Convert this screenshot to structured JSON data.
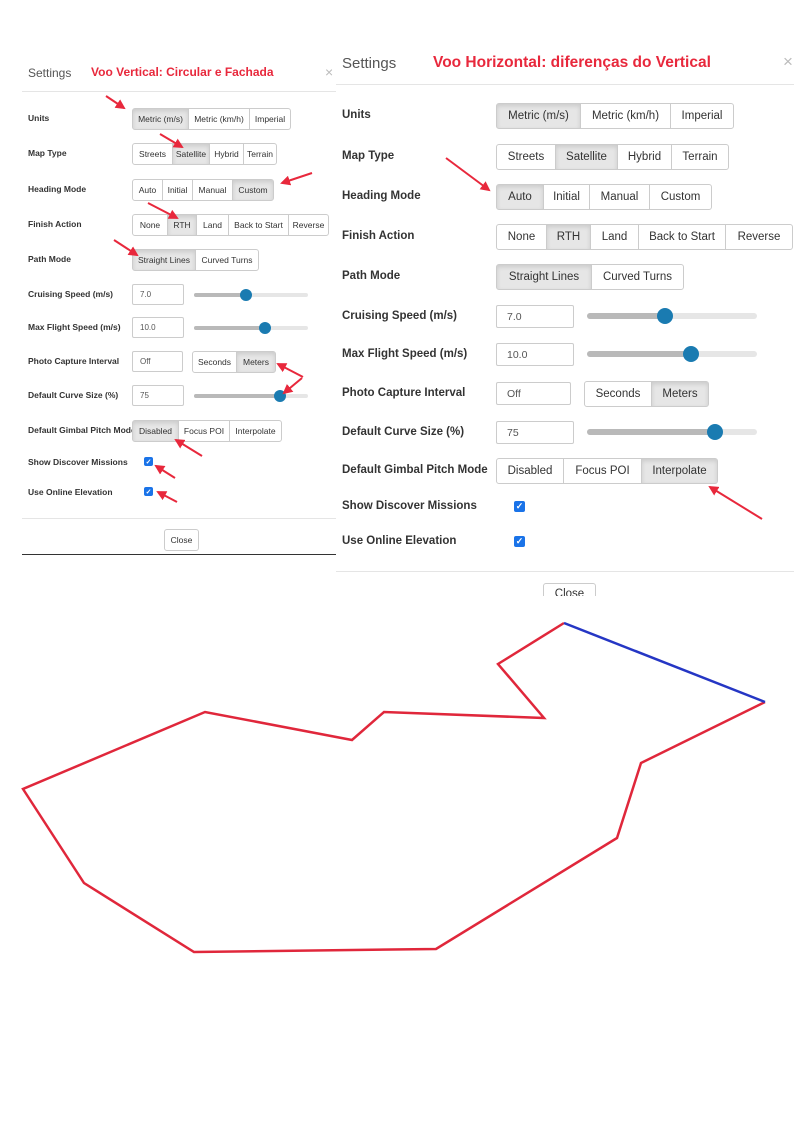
{
  "left": {
    "title": "Settings",
    "note": "Voo Vertical: Circular e Fachada",
    "close_x": "×",
    "labels": {
      "units": "Units",
      "map_type": "Map Type",
      "heading_mode": "Heading Mode",
      "finish_action": "Finish Action",
      "path_mode": "Path Mode",
      "cruising_speed": "Cruising Speed (m/s)",
      "max_speed": "Max Flight Speed (m/s)",
      "photo_interval": "Photo Capture Interval",
      "curve_size": "Default Curve Size (%)",
      "gimbal": "Default Gimbal Pitch Mode",
      "show_discover": "Show Discover Missions",
      "online_elev": "Use Online Elevation"
    },
    "units": [
      "Metric (m/s)",
      "Metric (km/h)",
      "Imperial"
    ],
    "map_type": [
      "Streets",
      "Satellite",
      "Hybrid",
      "Terrain"
    ],
    "heading_mode": [
      "Auto",
      "Initial",
      "Manual",
      "Custom"
    ],
    "finish_action": [
      "None",
      "RTH",
      "Land",
      "Back to Start",
      "Reverse"
    ],
    "path_mode": [
      "Straight Lines",
      "Curved Turns"
    ],
    "photo_mode": [
      "Seconds",
      "Meters"
    ],
    "gimbal": [
      "Disabled",
      "Focus POI",
      "Interpolate"
    ],
    "cruising_speed": "7.0",
    "max_speed": "10.0",
    "photo_interval": "Off",
    "curve_size": "75",
    "slider_levels": {
      "cruising": 0.46,
      "max": 0.62,
      "curve": 0.75
    },
    "selected": {
      "units": 0,
      "map_type": 1,
      "heading_mode": 3,
      "finish_action": 1,
      "path_mode": 0,
      "photo_mode": 1,
      "gimbal": 0
    },
    "close_button": "Close"
  },
  "right": {
    "title": "Settings",
    "note": "Voo Horizontal: diferenças do Vertical",
    "close_x": "×",
    "labels": {
      "units": "Units",
      "map_type": "Map Type",
      "heading_mode": "Heading Mode",
      "finish_action": "Finish Action",
      "path_mode": "Path Mode",
      "cruising_speed": "Cruising Speed (m/s)",
      "max_speed": "Max Flight Speed (m/s)",
      "photo_interval": "Photo Capture Interval",
      "curve_size": "Default Curve Size (%)",
      "gimbal": "Default Gimbal Pitch Mode",
      "show_discover": "Show Discover Missions",
      "online_elev": "Use Online Elevation"
    },
    "units": [
      "Metric (m/s)",
      "Metric (km/h)",
      "Imperial"
    ],
    "map_type": [
      "Streets",
      "Satellite",
      "Hybrid",
      "Terrain"
    ],
    "heading_mode": [
      "Auto",
      "Initial",
      "Manual",
      "Custom"
    ],
    "finish_action": [
      "None",
      "RTH",
      "Land",
      "Back to Start",
      "Reverse"
    ],
    "path_mode": [
      "Straight Lines",
      "Curved Turns"
    ],
    "photo_mode": [
      "Seconds",
      "Meters"
    ],
    "gimbal": [
      "Disabled",
      "Focus POI",
      "Interpolate"
    ],
    "cruising_speed": "7.0",
    "max_speed": "10.0",
    "photo_interval": "Off",
    "curve_size": "75",
    "slider_levels": {
      "cruising": 0.46,
      "max": 0.61,
      "curve": 0.75
    },
    "selected": {
      "units": 0,
      "map_type": 1,
      "heading_mode": 0,
      "finish_action": 1,
      "path_mode": 0,
      "photo_mode": 1,
      "gimbal": 2
    },
    "close_button": "Close"
  },
  "colors": {
    "accent": "#e8283c",
    "knob": "#1a7bb1",
    "checkbox": "#1a73e8",
    "polygon_red": "#e0273b",
    "polygon_blue": "#2536c4"
  }
}
